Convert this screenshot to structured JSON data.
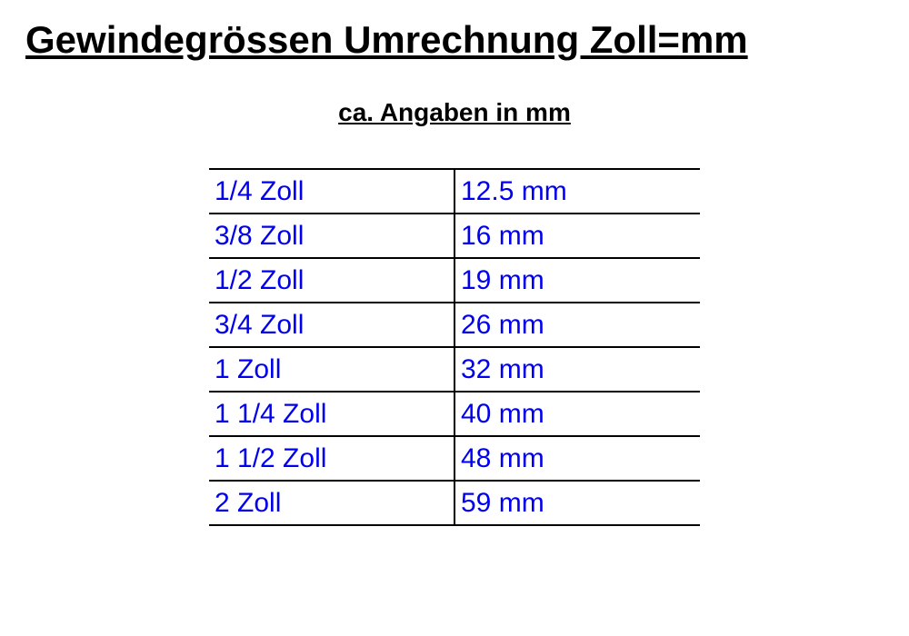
{
  "title": "Gewindegrössen Umrechnung Zoll=mm",
  "subtitle": "ca. Angaben in mm",
  "table": {
    "text_color": "#0000ee",
    "border_color": "#000000",
    "background_color": "#ffffff",
    "font_size": 30,
    "column_widths_pct": [
      50,
      50
    ],
    "rows": [
      {
        "zoll": "1/4 Zoll",
        "mm": "12.5 mm"
      },
      {
        "zoll": "3/8 Zoll",
        "mm": "16 mm"
      },
      {
        "zoll": "1/2 Zoll",
        "mm": "19 mm"
      },
      {
        "zoll": "3/4 Zoll",
        "mm": "26 mm"
      },
      {
        "zoll": "1 Zoll",
        "mm": "32 mm"
      },
      {
        "zoll": "1 1/4 Zoll",
        "mm": "40 mm"
      },
      {
        "zoll": "1 1/2 Zoll",
        "mm": "48 mm"
      },
      {
        "zoll": "2 Zoll",
        "mm": "59 mm"
      }
    ]
  }
}
